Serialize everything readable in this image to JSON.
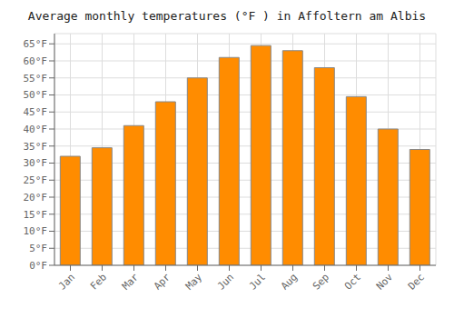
{
  "chart_data": {
    "type": "bar",
    "title": "Average monthly temperatures (°F ) in Affoltern am Albis",
    "categories": [
      "Jan",
      "Feb",
      "Mar",
      "Apr",
      "May",
      "Jun",
      "Jul",
      "Aug",
      "Sep",
      "Oct",
      "Nov",
      "Dec"
    ],
    "values": [
      32,
      34.5,
      41,
      48,
      55,
      61,
      64.5,
      63,
      58,
      49.5,
      40,
      34
    ],
    "color": "#FF8C00",
    "ylim": [
      0,
      68
    ],
    "yticks": [
      {
        "value": 0,
        "label": "0°F"
      },
      {
        "value": 5,
        "label": "5°F"
      },
      {
        "value": 10,
        "label": "10°F"
      },
      {
        "value": 15,
        "label": "15°F"
      },
      {
        "value": 20,
        "label": "20°F"
      },
      {
        "value": 25,
        "label": "25°F"
      },
      {
        "value": 30,
        "label": "30°F"
      },
      {
        "value": 35,
        "label": "35°F"
      },
      {
        "value": 40,
        "label": "40°F"
      },
      {
        "value": 45,
        "label": "45°F"
      },
      {
        "value": 50,
        "label": "50°F"
      },
      {
        "value": 55,
        "label": "55°F"
      },
      {
        "value": 60,
        "label": "60°F"
      },
      {
        "value": 65,
        "label": "65°F"
      }
    ],
    "grid": true
  }
}
